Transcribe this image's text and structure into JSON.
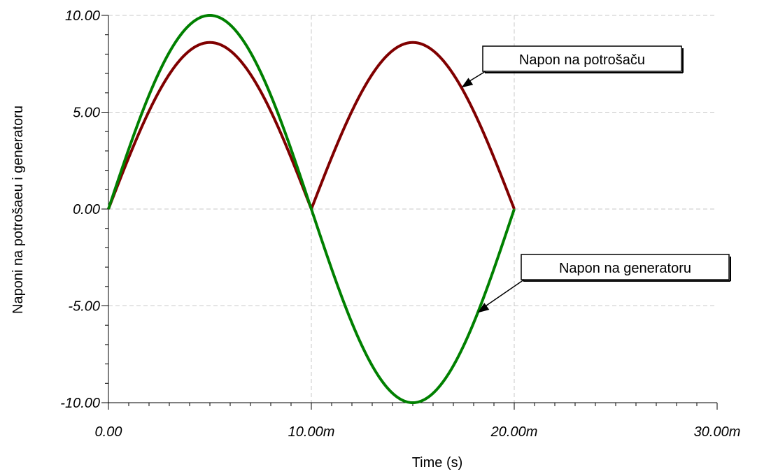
{
  "chart_data": {
    "type": "line",
    "xlabel": "Time (s)",
    "ylabel": "Naponi na potrošaeu i generatoru",
    "xlim": [
      0,
      0.03
    ],
    "ylim": [
      -10,
      10
    ],
    "x_tick_labels": [
      "0.00",
      "10.00m",
      "20.00m",
      "30.00m"
    ],
    "x_tick_values": [
      0,
      0.01,
      0.02,
      0.03
    ],
    "y_tick_labels": [
      "10.00",
      "5.00",
      "0.00",
      "-5.00",
      "-10.00"
    ],
    "y_tick_values": [
      10,
      5,
      0,
      -5,
      -10
    ],
    "grid": true,
    "series": [
      {
        "name": "Napon na potrošaču",
        "color": "#800000",
        "x_range": [
          0,
          0.02
        ],
        "amplitude": 8.6,
        "period": 0.02,
        "waveform": "full-wave rectified sine",
        "annotation_at": 0.0174
      },
      {
        "name": "Napon na generatoru",
        "color": "#008000",
        "x_range": [
          0,
          0.02
        ],
        "amplitude": 10,
        "period": 0.02,
        "waveform": "sine",
        "annotation_at": 0.0182
      }
    ],
    "callouts": [
      {
        "text": "Napon na potrošaču",
        "series": 0
      },
      {
        "text": "Napon na generatoru",
        "series": 1
      }
    ]
  }
}
